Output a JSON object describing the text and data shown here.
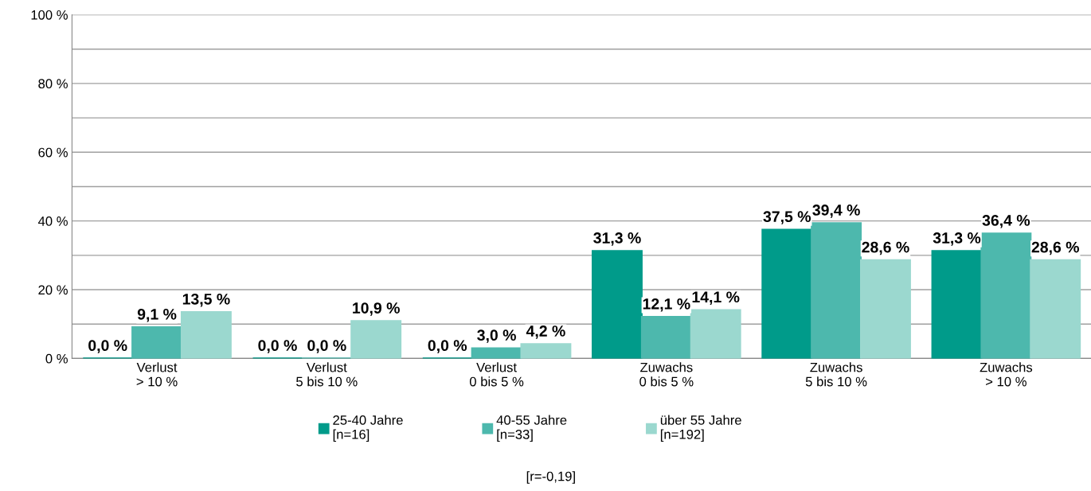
{
  "chart_data": {
    "type": "bar",
    "categories": [
      "Verlust\n> 10 %",
      "Verlust\n5 bis 10 %",
      "Verlust\n0 bis 5 %",
      "Zuwachs\n0 bis 5 %",
      "Zuwachs\n5 bis 10 %",
      "Zuwachs\n> 10 %"
    ],
    "series": [
      {
        "name": "25-40 Jahre\n[n=16]",
        "color": "#009b8a",
        "values": [
          0.0,
          0.0,
          0.0,
          31.3,
          37.5,
          31.3
        ],
        "value_labels": [
          "0,0 %",
          "0,0 %",
          "0,0 %",
          "31,3 %",
          "37,5 %",
          "31,3 %"
        ]
      },
      {
        "name": "40-55 Jahre\n[n=33]",
        "color": "#4db8ad",
        "values": [
          9.1,
          0.0,
          3.0,
          12.1,
          39.4,
          36.4
        ],
        "value_labels": [
          "9,1 %",
          "0,0 %",
          "3,0 %",
          "12,1 %",
          "39,4 %",
          "36,4 %"
        ]
      },
      {
        "name": "über 55 Jahre\n[n=192]",
        "color": "#9bd8cf",
        "values": [
          13.5,
          10.9,
          4.2,
          14.1,
          28.6,
          28.6
        ],
        "value_labels": [
          "13,5 %",
          "10,9 %",
          "4,2 %",
          "14,1 %",
          "28,6 %",
          "28,6 %"
        ]
      }
    ],
    "ylim": [
      0,
      100
    ],
    "yticks": [
      {
        "value": 0,
        "label": "0 %"
      },
      {
        "value": 10,
        "label": null
      },
      {
        "value": 20,
        "label": "20 %"
      },
      {
        "value": 30,
        "label": null
      },
      {
        "value": 40,
        "label": "40 %"
      },
      {
        "value": 50,
        "label": null
      },
      {
        "value": 60,
        "label": "60 %"
      },
      {
        "value": 70,
        "label": null
      },
      {
        "value": 80,
        "label": "80 %"
      },
      {
        "value": 90,
        "label": null
      },
      {
        "value": 100,
        "label": "100 %"
      }
    ],
    "grid": "y",
    "legend": "bottom",
    "annotations": [
      "[r=-0,19]"
    ]
  }
}
